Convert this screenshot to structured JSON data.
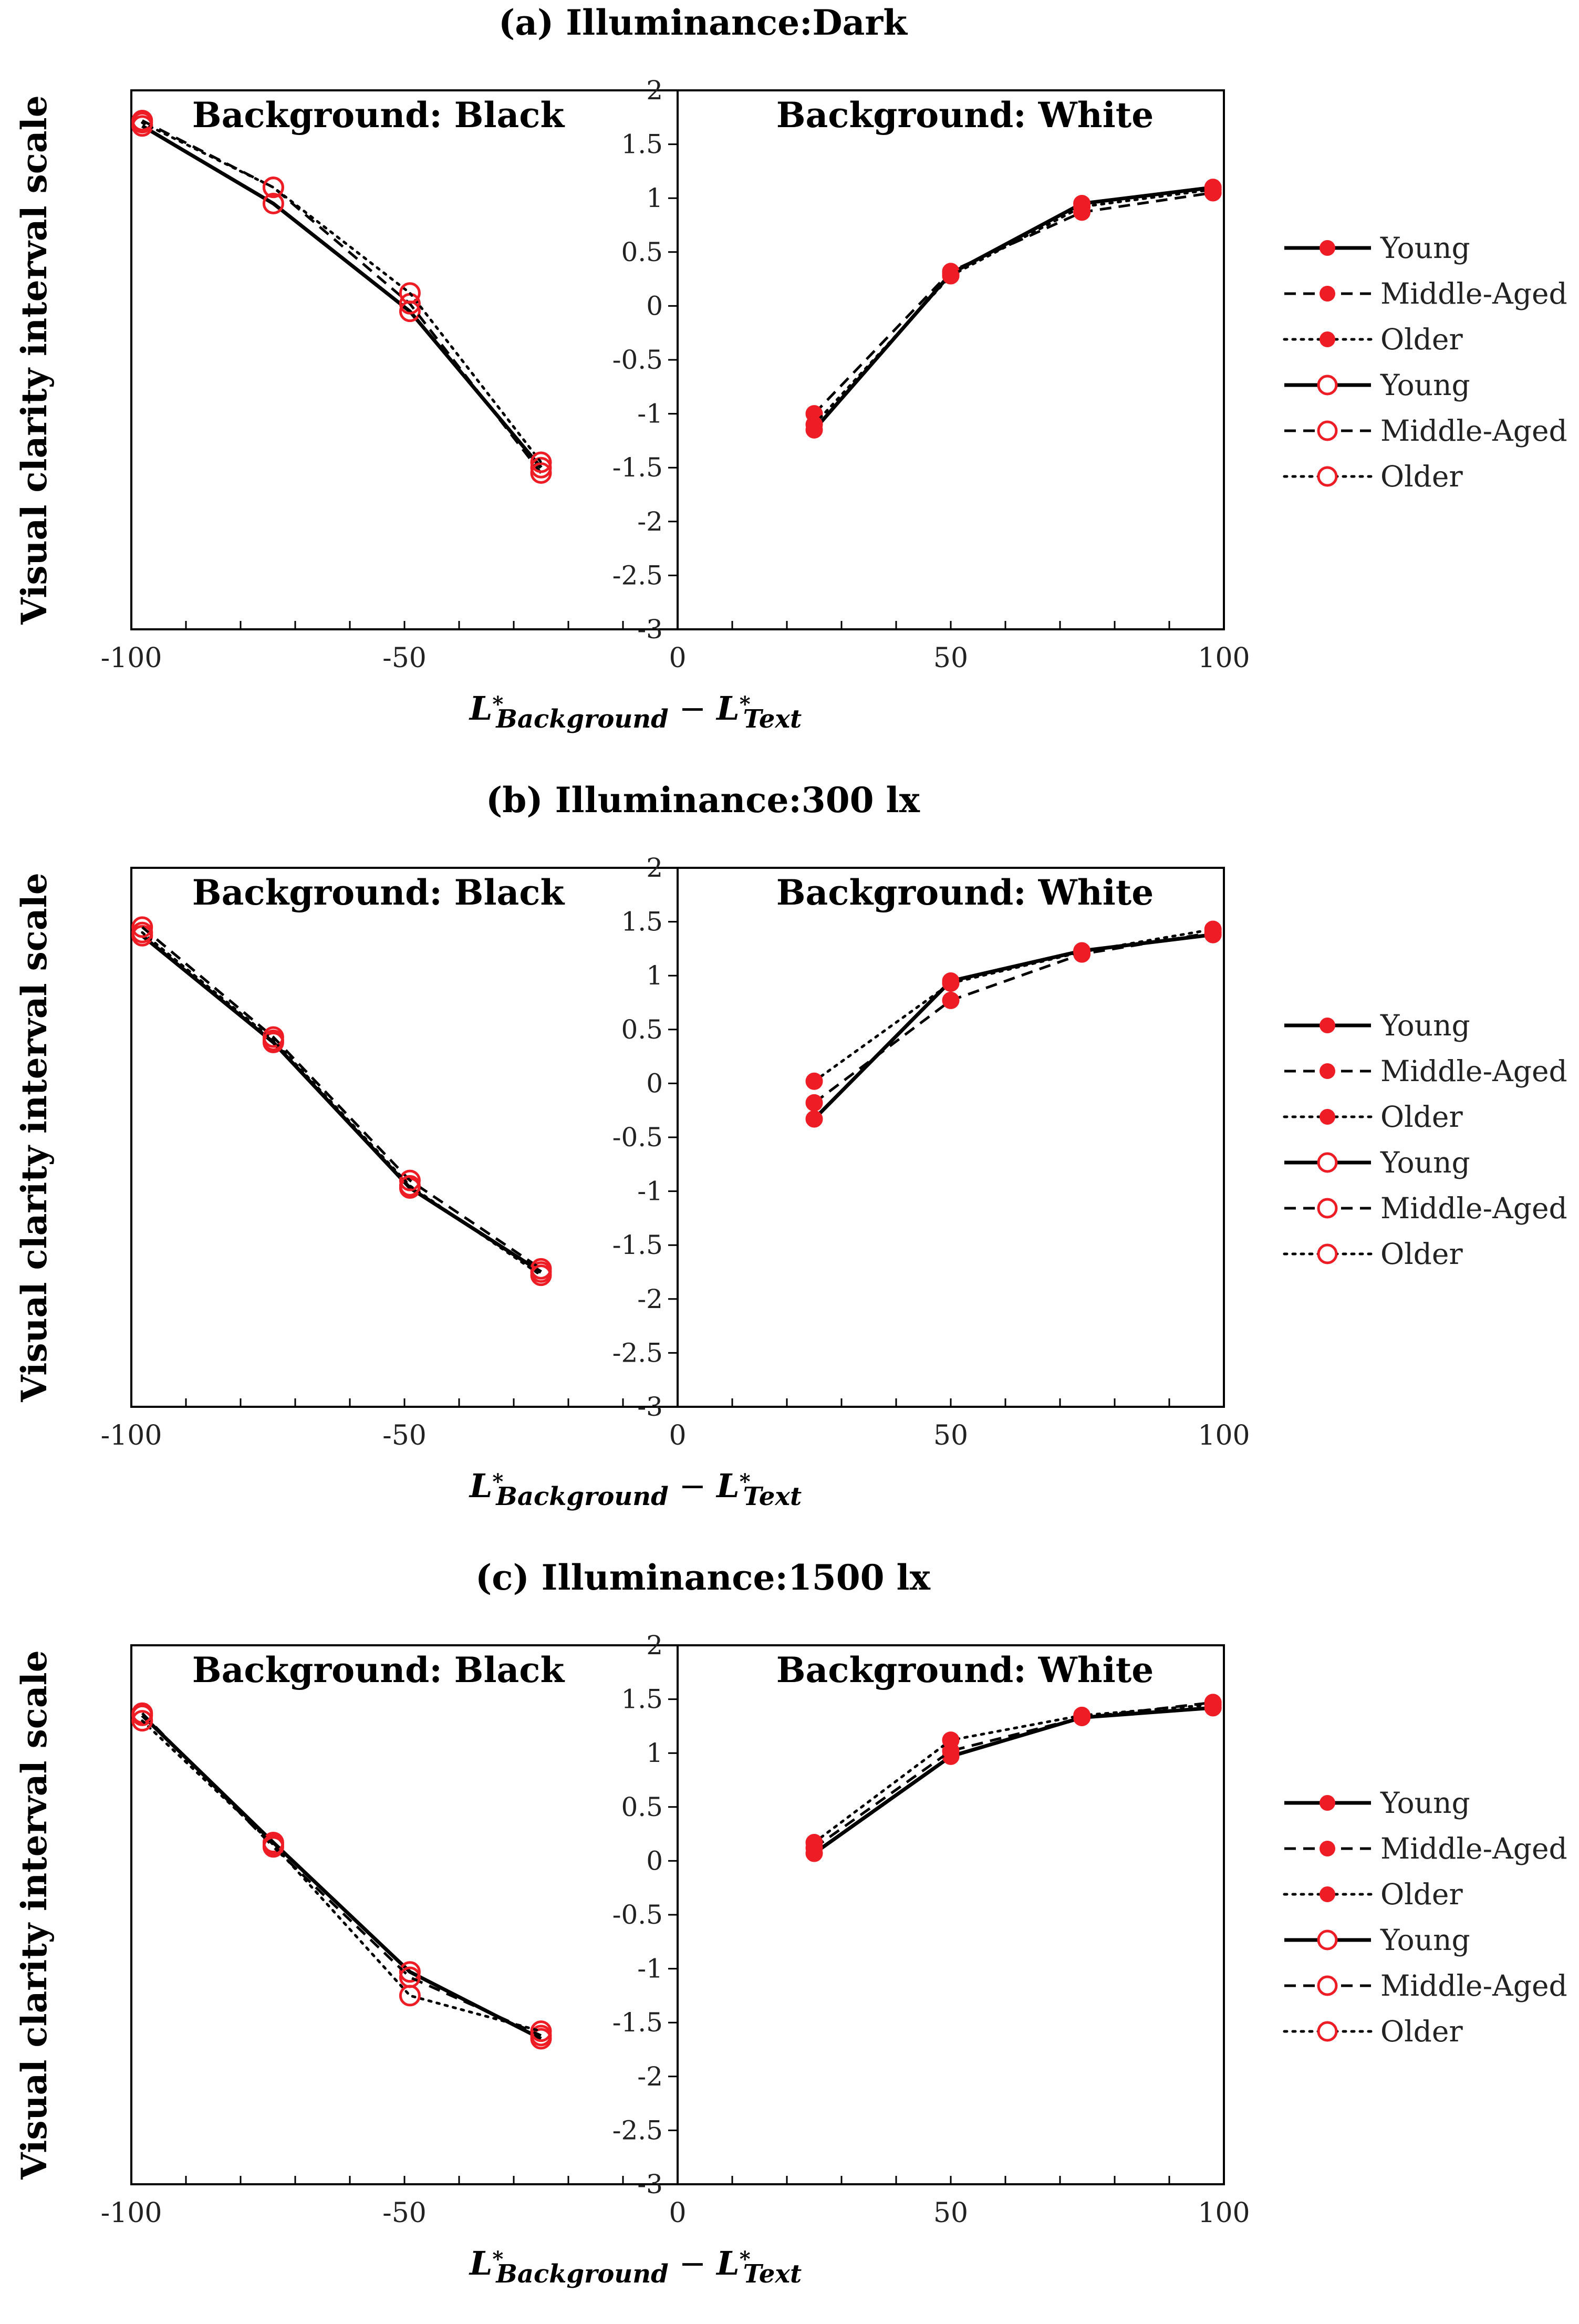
{
  "chart_data": [
    {
      "type": "line",
      "id": "a",
      "title": "(a) Illuminance:Dark",
      "ylabel": "Visual clarity interval scale",
      "xlabel": {
        "symbol": "L",
        "sub1": "Background",
        "sub2": "Text",
        "sup": "*",
        "minus": "−"
      },
      "ylim": [
        -3,
        2
      ],
      "xlim": [
        -100,
        100
      ],
      "yticks": [
        "2",
        "1.5",
        "1",
        "0.5",
        "0",
        "-0.5",
        "-1",
        "-1.5",
        "-2",
        "-2.5",
        "-3"
      ],
      "xticks": [
        "-100",
        "-50",
        "0",
        "50",
        "100"
      ],
      "panels": {
        "left": "Background: Black",
        "right": "Background: White"
      },
      "series": [
        {
          "name": "Young",
          "panel": "black",
          "marker": "open",
          "style": "solid",
          "x": [
            -98,
            -74,
            -49,
            -25
          ],
          "y": [
            1.67,
            0.95,
            -0.05,
            -1.5
          ]
        },
        {
          "name": "Middle-Aged",
          "panel": "black",
          "marker": "open",
          "style": "dashed",
          "x": [
            -98,
            -74,
            -49,
            -25
          ],
          "y": [
            1.72,
            1.1,
            0.02,
            -1.55
          ]
        },
        {
          "name": "Older",
          "panel": "black",
          "marker": "open",
          "style": "dotted",
          "x": [
            -98,
            -74,
            -49,
            -25
          ],
          "y": [
            1.7,
            1.1,
            0.12,
            -1.45
          ]
        },
        {
          "name": "Young",
          "panel": "white",
          "marker": "filled",
          "style": "solid",
          "x": [
            25,
            50,
            74,
            98
          ],
          "y": [
            -1.15,
            0.3,
            0.95,
            1.1
          ]
        },
        {
          "name": "Middle-Aged",
          "panel": "white",
          "marker": "filled",
          "style": "dashed",
          "x": [
            25,
            50,
            74,
            98
          ],
          "y": [
            -1.0,
            0.32,
            0.87,
            1.05
          ]
        },
        {
          "name": "Older",
          "panel": "white",
          "marker": "filled",
          "style": "dotted",
          "x": [
            25,
            50,
            74,
            98
          ],
          "y": [
            -1.1,
            0.28,
            0.92,
            1.08
          ]
        }
      ]
    },
    {
      "type": "line",
      "id": "b",
      "title": "(b) Illuminance:300 lx",
      "ylabel": "Visual clarity interval scale",
      "xlabel": {
        "symbol": "L",
        "sub1": "Background",
        "sub2": "Text",
        "sup": "*",
        "minus": "−"
      },
      "ylim": [
        -3,
        2
      ],
      "xlim": [
        -100,
        100
      ],
      "yticks": [
        "2",
        "1.5",
        "1",
        "0.5",
        "0",
        "-0.5",
        "-1",
        "-1.5",
        "-2",
        "-2.5",
        "-3"
      ],
      "xticks": [
        "-100",
        "-50",
        "0",
        "50",
        "100"
      ],
      "panels": {
        "left": "Background: Black",
        "right": "Background: White"
      },
      "series": [
        {
          "name": "Young",
          "panel": "black",
          "marker": "open",
          "style": "solid",
          "x": [
            -98,
            -74,
            -49,
            -25
          ],
          "y": [
            1.37,
            0.38,
            -0.97,
            -1.75
          ]
        },
        {
          "name": "Middle-Aged",
          "panel": "black",
          "marker": "open",
          "style": "dashed",
          "x": [
            -98,
            -74,
            -49,
            -25
          ],
          "y": [
            1.45,
            0.43,
            -0.9,
            -1.72
          ]
        },
        {
          "name": "Older",
          "panel": "black",
          "marker": "open",
          "style": "dotted",
          "x": [
            -98,
            -74,
            -49,
            -25
          ],
          "y": [
            1.4,
            0.4,
            -0.95,
            -1.78
          ]
        },
        {
          "name": "Young",
          "panel": "white",
          "marker": "filled",
          "style": "solid",
          "x": [
            25,
            50,
            74,
            98
          ],
          "y": [
            -0.33,
            0.95,
            1.23,
            1.38
          ]
        },
        {
          "name": "Middle-Aged",
          "panel": "white",
          "marker": "filled",
          "style": "dashed",
          "x": [
            25,
            50,
            74,
            98
          ],
          "y": [
            -0.18,
            0.77,
            1.2,
            1.4
          ]
        },
        {
          "name": "Older",
          "panel": "white",
          "marker": "filled",
          "style": "dotted",
          "x": [
            25,
            50,
            74,
            98
          ],
          "y": [
            0.02,
            0.93,
            1.22,
            1.43
          ]
        }
      ]
    },
    {
      "type": "line",
      "id": "c",
      "title": "(c) Illuminance:1500 lx",
      "ylabel": "Visual clarity interval scale",
      "xlabel": {
        "symbol": "L",
        "sub1": "Background",
        "sub2": "Text",
        "sup": "*",
        "minus": "−"
      },
      "ylim": [
        -3,
        2
      ],
      "xlim": [
        -100,
        100
      ],
      "yticks": [
        "2",
        "1.5",
        "1",
        "0.5",
        "0",
        "-0.5",
        "-1",
        "-1.5",
        "-2",
        "-2.5",
        "-3"
      ],
      "xticks": [
        "-100",
        "-50",
        "0",
        "50",
        "100"
      ],
      "panels": {
        "left": "Background: Black",
        "right": "Background: White"
      },
      "series": [
        {
          "name": "Young",
          "panel": "black",
          "marker": "open",
          "style": "solid",
          "x": [
            -98,
            -74,
            -49,
            -25
          ],
          "y": [
            1.35,
            0.17,
            -1.03,
            -1.65
          ]
        },
        {
          "name": "Middle-Aged",
          "panel": "black",
          "marker": "open",
          "style": "dashed",
          "x": [
            -98,
            -74,
            -49,
            -25
          ],
          "y": [
            1.37,
            0.13,
            -1.08,
            -1.62
          ]
        },
        {
          "name": "Older",
          "panel": "black",
          "marker": "open",
          "style": "dotted",
          "x": [
            -98,
            -74,
            -49,
            -25
          ],
          "y": [
            1.3,
            0.15,
            -1.25,
            -1.58
          ]
        },
        {
          "name": "Young",
          "panel": "white",
          "marker": "filled",
          "style": "solid",
          "x": [
            25,
            50,
            74,
            98
          ],
          "y": [
            0.07,
            0.97,
            1.33,
            1.42
          ]
        },
        {
          "name": "Middle-Aged",
          "panel": "white",
          "marker": "filled",
          "style": "dashed",
          "x": [
            25,
            50,
            74,
            98
          ],
          "y": [
            0.12,
            1.02,
            1.33,
            1.47
          ]
        },
        {
          "name": "Older",
          "panel": "white",
          "marker": "filled",
          "style": "dotted",
          "x": [
            25,
            50,
            74,
            98
          ],
          "y": [
            0.17,
            1.12,
            1.35,
            1.45
          ]
        }
      ]
    }
  ],
  "legend": [
    {
      "label": "Young",
      "style": "solid",
      "marker": "filled"
    },
    {
      "label": "Middle-Aged",
      "style": "dashed",
      "marker": "filled"
    },
    {
      "label": "Older",
      "style": "dotted",
      "marker": "filled"
    },
    {
      "label": "Young",
      "style": "solid",
      "marker": "open"
    },
    {
      "label": "Middle-Aged",
      "style": "dashed",
      "marker": "open"
    },
    {
      "label": "Older",
      "style": "dotted",
      "marker": "open"
    }
  ],
  "colors": {
    "marker": "#ee1c24",
    "line": "#000000",
    "axis": "#000000",
    "tick_text": "#222222"
  }
}
